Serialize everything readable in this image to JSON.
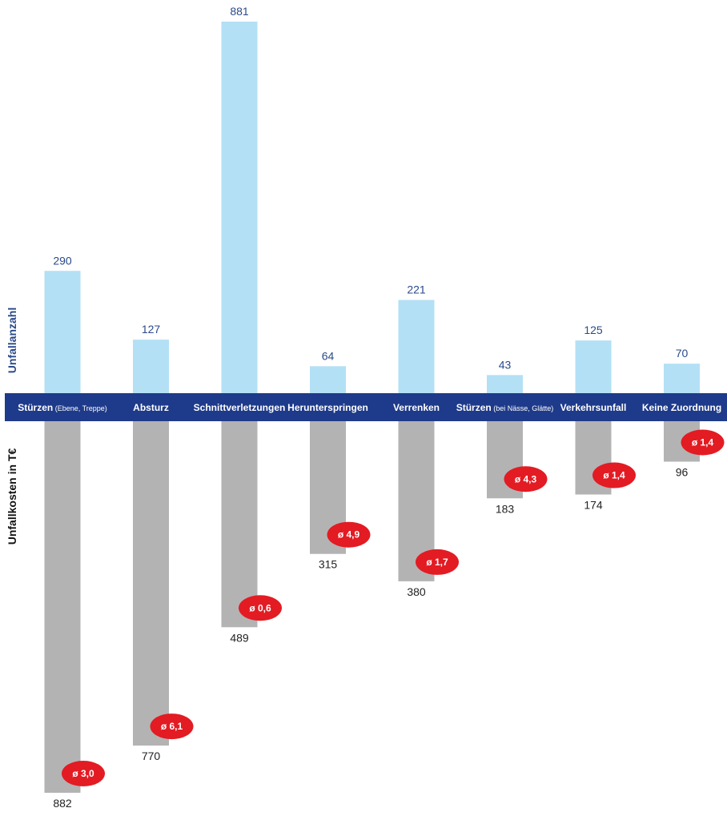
{
  "chart_data": {
    "type": "bar",
    "categories": [
      "Stürzen (Ebene, Treppe)",
      "Absturz",
      "Schnittverletzungen",
      "Herunterspringen",
      "Verrenken",
      "Stürzen (bei Nässe, Glätte)",
      "Verkehrsunfall",
      "Keine Zuordnung"
    ],
    "category_labels": [
      {
        "main": "Stürzen",
        "sub": "(Ebene, Treppe)"
      },
      {
        "main": "Absturz",
        "sub": ""
      },
      {
        "main": "Schnittverletzungen",
        "sub": ""
      },
      {
        "main": "Herunterspringen",
        "sub": ""
      },
      {
        "main": "Verrenken",
        "sub": ""
      },
      {
        "main": "Stürzen",
        "sub": "(bei Nässe, Glätte)"
      },
      {
        "main": "Verkehrsunfall",
        "sub": ""
      },
      {
        "main": "Keine Zuordnung",
        "sub": ""
      }
    ],
    "series": [
      {
        "name": "Unfallanzahl",
        "values": [
          290,
          127,
          881,
          64,
          221,
          43,
          125,
          70
        ],
        "color": "#b3e0f5"
      },
      {
        "name": "Unfallkosten in T€",
        "values": [
          882,
          770,
          489,
          315,
          380,
          183,
          174,
          96
        ],
        "color": "#b3b3b3"
      }
    ],
    "averages": [
      "ø 3,0",
      "ø 6,1",
      "ø 0,6",
      "ø 4,9",
      "ø 1,7",
      "ø 4,3",
      "ø 1,4",
      "ø 1,4"
    ],
    "ylabel_top": "Unfallanzahl",
    "ylabel_bottom": "Unfallkosten in T€",
    "colors": {
      "band": "#1e3a8a",
      "badge": "#e31b23",
      "top_label": "#2a4a8a"
    }
  }
}
